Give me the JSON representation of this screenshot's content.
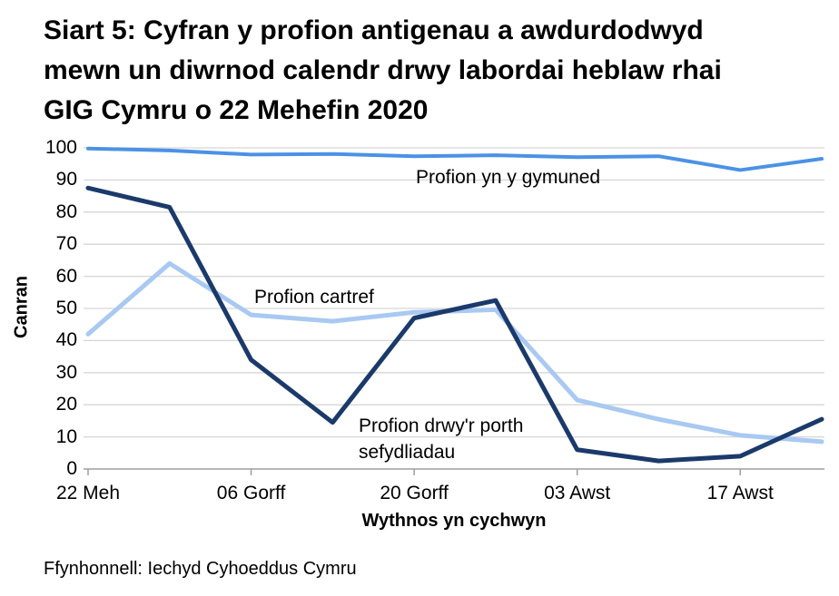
{
  "chart_data": {
    "type": "line",
    "title": "Siart 5: Cyfran y profion antigenau a awdurdodwyd mewn un diwrnod calendr drwy labordai heblaw rhai GIG Cymru o 22 Mehefin 2020",
    "title_lines": [
      "Siart 5: Cyfran y profion antigenau a awdurdodwyd",
      "mewn un diwrnod calendr drwy labordai heblaw rhai",
      "GIG Cymru o 22 Mehefin 2020"
    ],
    "xlabel": "Wythnos yn cychwyn",
    "ylabel": "Canran",
    "ylim": [
      0,
      100
    ],
    "y_ticks": [
      0,
      10,
      20,
      30,
      40,
      50,
      60,
      70,
      80,
      90,
      100
    ],
    "grid": true,
    "legend_position": "inline-annotations",
    "n_points": 10,
    "x_tick_labels": [
      "22 Meh",
      "06 Gorff",
      "20 Gorff",
      "03 Awst",
      "17 Awst"
    ],
    "x_tick_point_indexes": [
      0,
      2,
      4,
      6,
      8
    ],
    "series": [
      {
        "name": "Profion yn y gymuned",
        "color": "#4b92e5",
        "line_width": 4,
        "values": [
          99.8,
          99.2,
          97.9,
          98.1,
          97.4,
          97.7,
          97.1,
          97.4,
          93.1,
          96.6
        ]
      },
      {
        "name": "Profion cartref",
        "color": "#a9c9f2",
        "line_width": 5,
        "values": [
          42,
          64,
          48,
          46,
          48.8,
          49.6,
          21.5,
          15.5,
          10.5,
          8.5
        ]
      },
      {
        "name": "Profion drwy'r porth sefydliadau",
        "color": "#1b3a6b",
        "line_width": 5,
        "values": [
          87.5,
          81.5,
          34,
          14.5,
          47,
          52.5,
          6,
          2.5,
          4,
          15.5
        ]
      }
    ],
    "annotations": [
      {
        "text": "Profion yn y gymuned"
      },
      {
        "text": "Profion cartref"
      },
      {
        "text": "Profion drwy'r porth sefydliadau"
      }
    ]
  },
  "colors": {
    "gridline": "#d6d6d6",
    "axis": "#9e9e9e",
    "text": "#000000",
    "background": "#ffffff"
  },
  "footer": {
    "source": "Ffynhonnell: Iechyd Cyhoeddus Cymru"
  }
}
